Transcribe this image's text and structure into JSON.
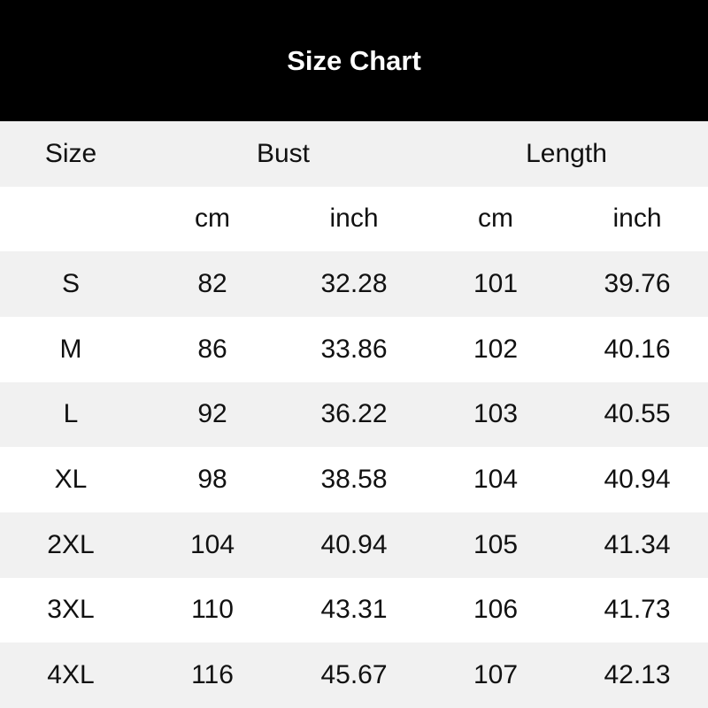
{
  "title": "Size Chart",
  "colors": {
    "header_bg": "#000000",
    "header_text": "#ffffff",
    "stripe": "#f1f1f1"
  },
  "columns": {
    "size": "Size",
    "bust": "Bust",
    "length": "Length"
  },
  "units": [
    "cm",
    "inch",
    "cm",
    "inch"
  ],
  "rows": [
    [
      "S",
      "82",
      "32.28",
      "101",
      "39.76"
    ],
    [
      "M",
      "86",
      "33.86",
      "102",
      "40.16"
    ],
    [
      "L",
      "92",
      "36.22",
      "103",
      "40.55"
    ],
    [
      "XL",
      "98",
      "38.58",
      "104",
      "40.94"
    ],
    [
      "2XL",
      "104",
      "40.94",
      "105",
      "41.34"
    ],
    [
      "3XL",
      "110",
      "43.31",
      "106",
      "41.73"
    ],
    [
      "4XL",
      "116",
      "45.67",
      "107",
      "42.13"
    ]
  ]
}
